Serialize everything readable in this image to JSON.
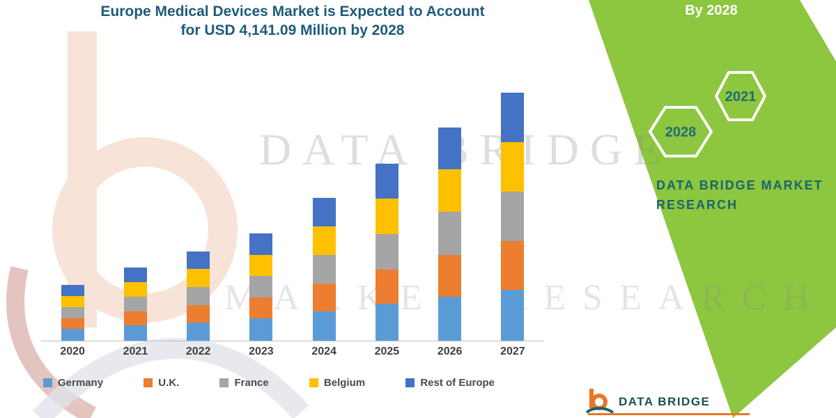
{
  "title": {
    "line1": "Europe Medical Devices Market is Expected to Account",
    "line2": "for USD 4,141.09 Million by 2028"
  },
  "ribbon": {
    "by_label": "By 2028",
    "hexagons": [
      "2028",
      "2021"
    ],
    "company_line1": "DATA BRIDGE MARKET",
    "company_line2": "RESEARCH",
    "band_color": "#8DC63F"
  },
  "watermark": {
    "line1": "DATA BRIDGE",
    "line2": "MARKET RESEARCH"
  },
  "footer_logo": {
    "text": "DATA BRIDGE",
    "accent_color": "#E87722"
  },
  "chart_data": {
    "type": "bar",
    "stacked": true,
    "title": "Europe Medical Devices Market is Expected to Account for USD 4,141.09 Million by 2028",
    "categories": [
      "2020",
      "2021",
      "2022",
      "2023",
      "2024",
      "2025",
      "2026",
      "2027"
    ],
    "series": [
      {
        "name": "Germany",
        "color": "#5B9BD5",
        "values": [
          170,
          220,
          265,
          320,
          425,
          530,
          635,
          730
        ]
      },
      {
        "name": "U.K.",
        "color": "#ED7D31",
        "values": [
          155,
          205,
          250,
          300,
          400,
          495,
          600,
          700
        ]
      },
      {
        "name": "France",
        "color": "#A5A5A5",
        "values": [
          160,
          210,
          255,
          310,
          410,
          510,
          615,
          715
        ]
      },
      {
        "name": "Belgium",
        "color": "#FFC000",
        "values": [
          160,
          210,
          260,
          305,
          410,
          505,
          610,
          710
        ]
      },
      {
        "name": "Rest of Europe",
        "color": "#4472C4",
        "values": [
          155,
          205,
          250,
          305,
          405,
          500,
          600,
          705
        ]
      }
    ],
    "totals": [
      800,
      1050,
      1280,
      1540,
      2050,
      2540,
      3060,
      3560
    ],
    "xlabel": "",
    "ylabel": "",
    "y_axis_visible": false,
    "values_unit": "USD Million (estimated from bar heights; no value axis shown)",
    "legend_position": "bottom",
    "grid": false
  }
}
